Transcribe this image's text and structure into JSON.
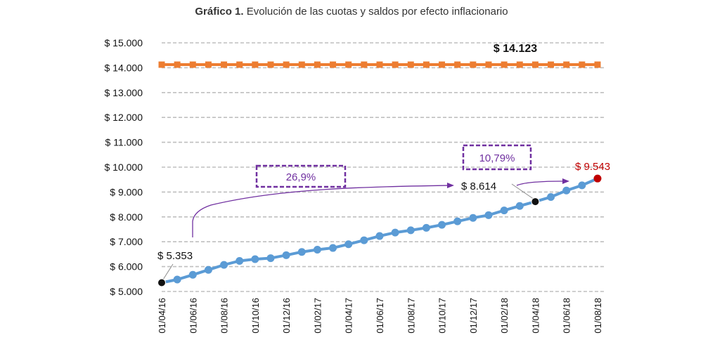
{
  "chart_data": {
    "type": "line",
    "title_bold": "Gráfico 1.",
    "title_rest": " Evolución de las cuotas y saldos por efecto inflacionario",
    "ylim": [
      5000,
      15000
    ],
    "y_ticks": [
      "$ 5.000",
      "$ 6.000",
      "$ 7.000",
      "$ 8.000",
      "$ 9.000",
      "$ 10.000",
      "$ 11.000",
      "$ 12.000",
      "$ 13.000",
      "$ 14.000",
      "$ 15.000"
    ],
    "y_tick_values": [
      5000,
      6000,
      7000,
      8000,
      9000,
      10000,
      11000,
      12000,
      13000,
      14000,
      15000
    ],
    "x_tick_labels": [
      "01/04/16",
      "01/06/16",
      "01/08/16",
      "01/10/16",
      "01/12/16",
      "01/02/17",
      "01/04/17",
      "01/06/17",
      "01/08/17",
      "01/10/17",
      "01/12/17",
      "01/02/18",
      "01/04/18",
      "01/06/18",
      "01/08/18"
    ],
    "grid": true,
    "colors": {
      "orange": "#ed7d31",
      "blue": "#5b9bd5",
      "purple": "#7030a0",
      "red": "#c00000",
      "grid": "#bfbfbf"
    },
    "series": [
      {
        "color": "#ed7d31",
        "marker": "square",
        "values": [
          14123,
          14123,
          14123,
          14123,
          14123,
          14123,
          14123,
          14123,
          14123,
          14123,
          14123,
          14123,
          14123,
          14123,
          14123,
          14123,
          14123,
          14123,
          14123,
          14123,
          14123,
          14123,
          14123,
          14123,
          14123,
          14123,
          14123,
          14123,
          14123
        ]
      },
      {
        "color": "#5b9bd5",
        "marker": "circle",
        "values": [
          5353,
          5480,
          5670,
          5870,
          6070,
          6230,
          6300,
          6340,
          6460,
          6590,
          6680,
          6750,
          6900,
          7060,
          7230,
          7370,
          7460,
          7560,
          7680,
          7820,
          7960,
          8070,
          8260,
          8440,
          8614,
          8800,
          9060,
          9270,
          9543
        ]
      }
    ],
    "annotations": {
      "top_value": "$ 14.123",
      "start_value": "$ 5.353",
      "mid_value": "$ 8.614",
      "end_value": "$ 9.543",
      "pct_first": "26,9%",
      "pct_second": "10,79%"
    }
  }
}
